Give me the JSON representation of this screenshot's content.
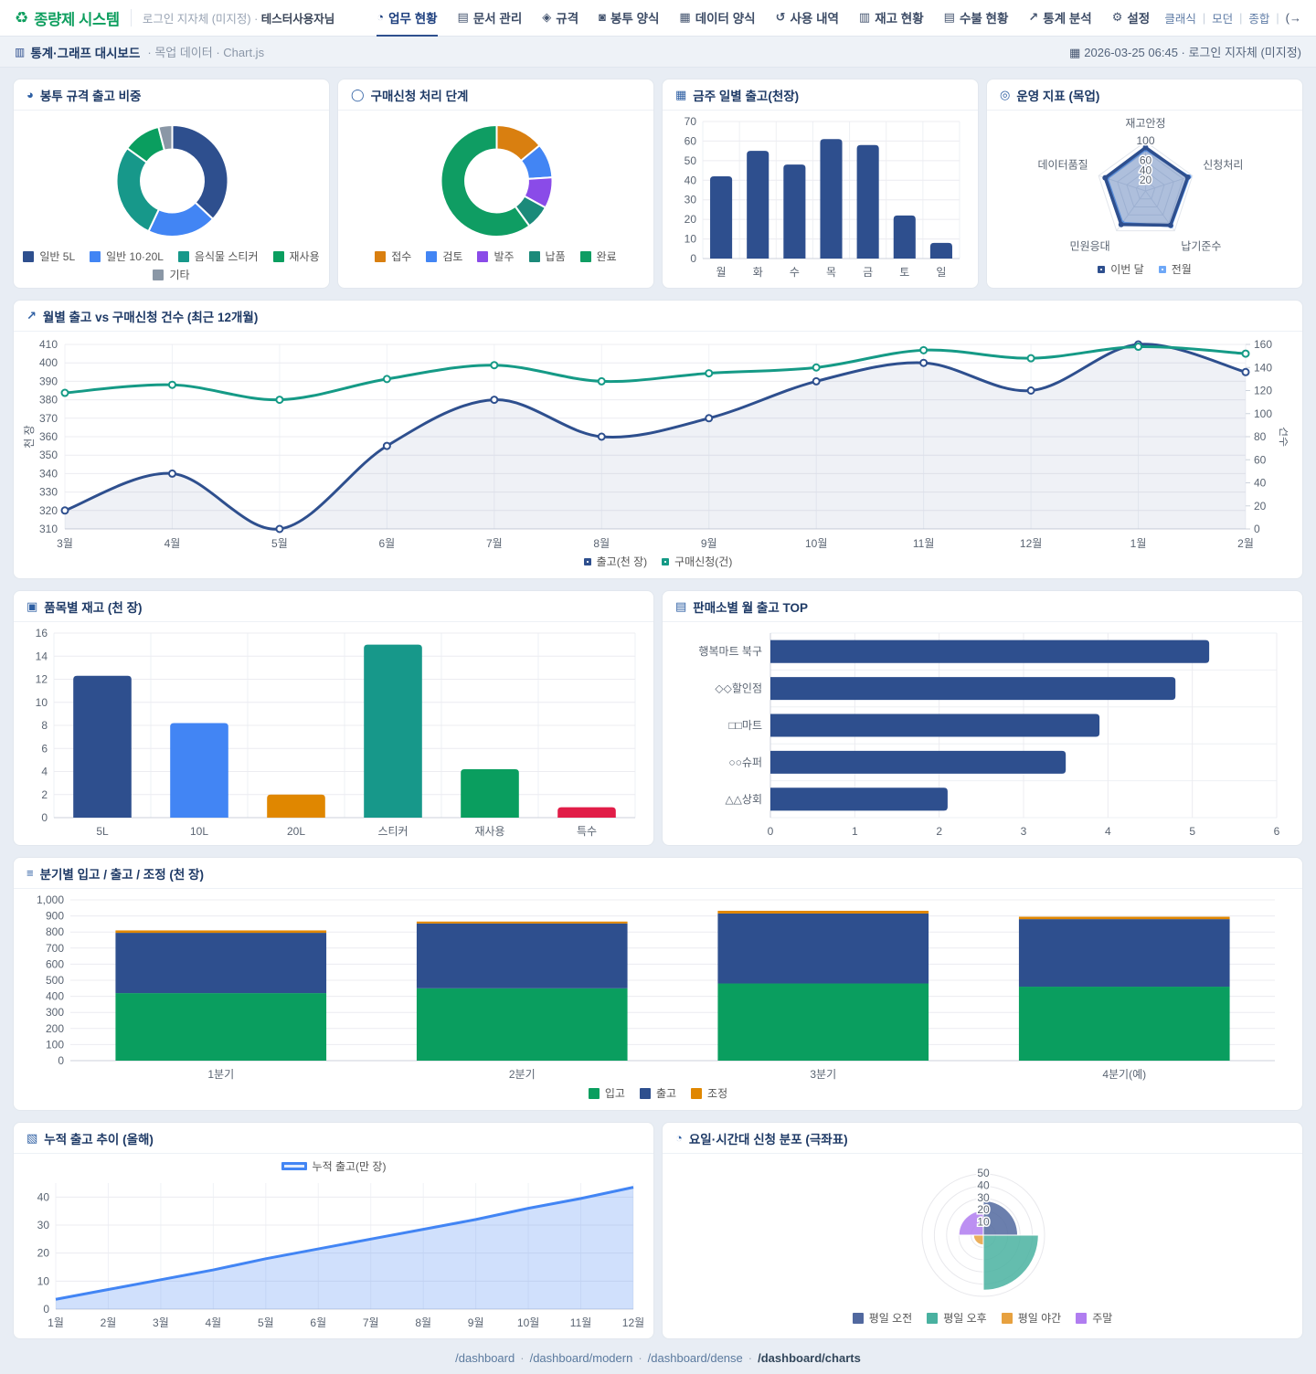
{
  "brand": {
    "logo_icon": "♻",
    "title": "종량제 시스템",
    "login_label": "로그인 지자체 (미지정) ·",
    "user": "테스터사용자님"
  },
  "nav": {
    "items": [
      {
        "label": "업무 현황",
        "icon": "◔",
        "active": true
      },
      {
        "label": "문서 관리",
        "icon": "▤",
        "active": false
      },
      {
        "label": "규격",
        "icon": "◈",
        "active": false
      },
      {
        "label": "봉투 양식",
        "icon": "◙",
        "active": false
      },
      {
        "label": "데이터 양식",
        "icon": "▦",
        "active": false
      },
      {
        "label": "사용 내역",
        "icon": "↺",
        "active": false
      },
      {
        "label": "재고 현황",
        "icon": "▥",
        "active": false
      },
      {
        "label": "수불 현황",
        "icon": "▤",
        "active": false
      },
      {
        "label": "통계 분석",
        "icon": "↗",
        "active": false
      },
      {
        "label": "설정",
        "icon": "⚙",
        "active": false
      }
    ],
    "links": [
      "클래식",
      "모던",
      "종합"
    ],
    "exit_icon": "(→"
  },
  "breadcrumb": {
    "icon": "▥",
    "title": "통계·그래프 대시보드",
    "trail": "· 목업 데이터 · Chart.js",
    "date_icon": "▦",
    "right": "2026-03-25 06:45 · 로그인 지자체 (미지정)"
  },
  "footer": {
    "links": [
      "/dashboard",
      "/dashboard/modern",
      "/dashboard/dense"
    ],
    "current": "/dashboard/charts",
    "sep": "·"
  },
  "palette": {
    "navy": "#2e4f8e",
    "blue": "#4285f4",
    "teal": "#17988a",
    "green": "#0a9e5f",
    "orange": "#e08700",
    "purple": "#8a4be8",
    "crimson": "#e11d48",
    "gray": "#8a97a6"
  },
  "chart_data": [
    {
      "id": "envelope-mix",
      "type": "pie",
      "title": "봉투 규격 출고 비중",
      "icon": "◕",
      "labels": [
        "일반 5L",
        "일반 10·20L",
        "음식물 스티커",
        "재사용",
        "기타"
      ],
      "values": [
        37,
        20,
        28,
        11,
        4
      ],
      "colors": [
        "#2e4f8e",
        "#4285f4",
        "#17988a",
        "#0a9e5f",
        "#8a97a6"
      ]
    },
    {
      "id": "request-stages",
      "type": "pie",
      "title": "구매신청 처리 단계",
      "icon": "◯",
      "labels": [
        "접수",
        "검토",
        "발주",
        "납품",
        "완료"
      ],
      "values": [
        14,
        10,
        9,
        7,
        60
      ],
      "colors": [
        "#d97f10",
        "#4285f4",
        "#8a4be8",
        "#1b8a7a",
        "#0f9d63"
      ]
    },
    {
      "id": "weekly-shipments",
      "type": "bar",
      "title": "금주 일별 출고(천장)",
      "icon": "▦",
      "categories": [
        "월",
        "화",
        "수",
        "목",
        "금",
        "토",
        "일"
      ],
      "values": [
        42,
        55,
        48,
        61,
        58,
        22,
        8
      ],
      "color": "#2e4f8e",
      "ylim": [
        0,
        70
      ],
      "ystep": 10
    },
    {
      "id": "ops-radar",
      "type": "radar",
      "title": "운영 지표 (목업)",
      "icon": "◎",
      "axes": [
        "재고안정",
        "신청처리",
        "납기준수",
        "민원응대",
        "데이터품질"
      ],
      "max": 100,
      "ticks_shown": [
        20,
        40,
        60,
        100
      ],
      "series": [
        {
          "name": "이번 달",
          "color": "#2e4f8e",
          "values": [
            88,
            90,
            86,
            84,
            86
          ]
        },
        {
          "name": "전월",
          "color": "#6ea8f7",
          "values": [
            84,
            93,
            88,
            80,
            82
          ]
        }
      ]
    },
    {
      "id": "monthly-dual",
      "type": "line",
      "title": "월별 출고 vs 구매신청 건수 (최근 12개월)",
      "icon": "↗",
      "categories": [
        "3월",
        "4월",
        "5월",
        "6월",
        "7월",
        "8월",
        "9월",
        "10월",
        "11월",
        "12월",
        "1월",
        "2월"
      ],
      "left_axis": {
        "label": "천 장",
        "min": 310,
        "max": 410,
        "step": 10
      },
      "right_axis": {
        "label": "건수",
        "min": 0,
        "max": 160,
        "step": 20
      },
      "series": [
        {
          "name": "출고(천 장)",
          "axis": "left",
          "color": "#2e4f8e",
          "fill": "rgba(46,79,142,0.08)",
          "values": [
            320,
            340,
            310,
            355,
            380,
            360,
            370,
            390,
            400,
            385,
            410,
            395
          ]
        },
        {
          "name": "구매신청(건)",
          "axis": "right",
          "color": "#159a86",
          "values": [
            118,
            125,
            112,
            130,
            142,
            128,
            135,
            140,
            155,
            148,
            158,
            152
          ]
        }
      ]
    },
    {
      "id": "stock-by-item",
      "type": "bar",
      "title": "품목별 재고 (천 장)",
      "icon": "▣",
      "categories": [
        "5L",
        "10L",
        "20L",
        "스티커",
        "재사용",
        "특수"
      ],
      "values": [
        12.3,
        8.2,
        2,
        15,
        4.2,
        0.9
      ],
      "colors": [
        "#2e4f8e",
        "#4285f4",
        "#e08700",
        "#17988a",
        "#0a9e5f",
        "#e11d48"
      ],
      "ylim": [
        0,
        16
      ],
      "ystep": 2
    },
    {
      "id": "top-stores",
      "type": "hbar",
      "title": "판매소별 월 출고 TOP",
      "icon": "▤",
      "categories": [
        "행복마트 북구",
        "◇◇할인점",
        "□□마트",
        "○○슈퍼",
        "△△상회"
      ],
      "values": [
        5.2,
        4.8,
        3.9,
        3.5,
        2.1
      ],
      "color": "#2e4f8e",
      "xlim": [
        0,
        6
      ],
      "xstep": 1
    },
    {
      "id": "quarterly-flow",
      "type": "stacked-bar",
      "title": "분기별 입고 / 출고 / 조정 (천 장)",
      "icon": "≡",
      "categories": [
        "1분기",
        "2분기",
        "3분기",
        "4분기(예)"
      ],
      "series": [
        {
          "name": "입고",
          "color": "#0a9e5f",
          "values": [
            420,
            450,
            480,
            460
          ]
        },
        {
          "name": "출고",
          "color": "#2e4f8e",
          "values": [
            375,
            403,
            435,
            420
          ]
        },
        {
          "name": "조정",
          "color": "#e08700",
          "values": [
            15,
            12,
            17,
            15
          ]
        }
      ],
      "ylim": [
        0,
        1000
      ],
      "ystep": 100
    },
    {
      "id": "cumulative-shipments",
      "type": "area",
      "title": "누적 출고 추이 (올해)",
      "icon": "▧",
      "legend_label": "누적 출고(만 장)",
      "categories": [
        "1월",
        "2월",
        "3월",
        "4월",
        "5월",
        "6월",
        "7월",
        "8월",
        "9월",
        "10월",
        "11월",
        "12월"
      ],
      "values": [
        3.5,
        7,
        10.5,
        14,
        18,
        21.5,
        25,
        28.5,
        32,
        36,
        39.5,
        43.5
      ],
      "color": "#4285f4",
      "fill": "rgba(66,133,244,0.25)",
      "ylim": [
        0,
        45
      ],
      "yticks": [
        0,
        10,
        20,
        30,
        40
      ]
    },
    {
      "id": "time-distribution",
      "type": "polar",
      "title": "요일·시간대 신청 분포 (극좌표)",
      "icon": "◔",
      "labels": [
        "평일 오전",
        "평일 오후",
        "평일 야간",
        "주말"
      ],
      "values": [
        28,
        45,
        8,
        20
      ],
      "colors": [
        "#51689f",
        "#49b1a0",
        "#e7a13f",
        "#b07df0"
      ],
      "max": 50,
      "ticks": [
        10,
        20,
        30,
        40,
        50
      ]
    }
  ]
}
